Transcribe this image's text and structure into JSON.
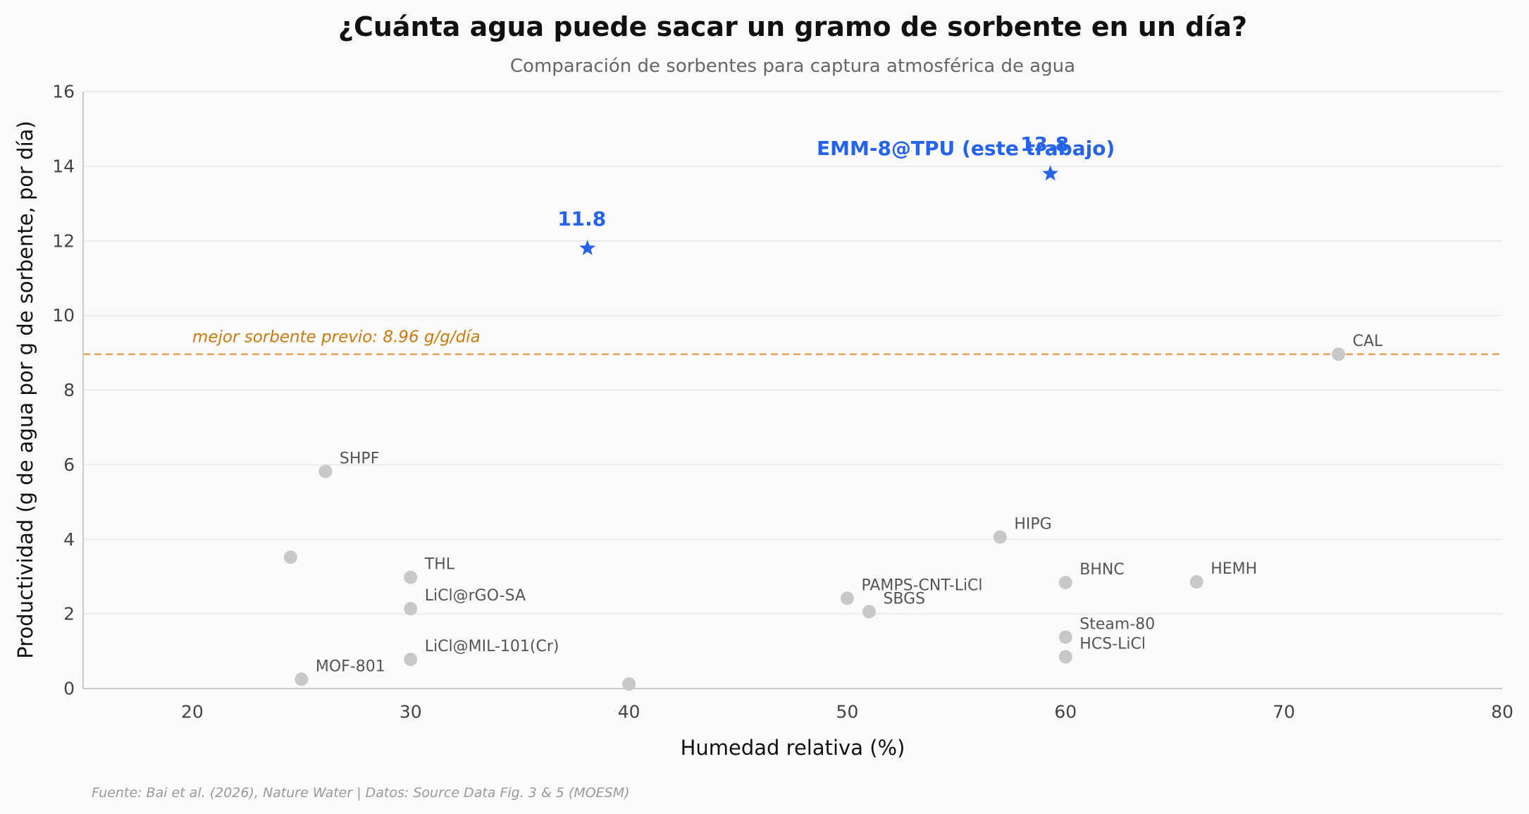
{
  "chart_data": {
    "type": "scatter",
    "title": "¿Cuánta agua puede sacar un gramo de sorbente en un día?",
    "subtitle": "Comparación de sorbentes para captura atmosférica de agua",
    "xlabel": "Humedad relativa (%)",
    "ylabel": "Productividad (g de agua por g de sorbente, por día)",
    "xlim": [
      15,
      80
    ],
    "ylim": [
      0,
      16
    ],
    "xticks": [
      20,
      30,
      40,
      50,
      60,
      70,
      80
    ],
    "yticks": [
      0,
      2,
      4,
      6,
      8,
      10,
      12,
      14,
      16
    ],
    "grid": "y",
    "reference_line": {
      "y": 8.96,
      "label": "mejor sorbente previo: 8.96 g/g/día"
    },
    "series": [
      {
        "points": [
          {
            "x": 26.1,
            "y": 5.82,
            "label": "SHPF"
          },
          {
            "x": 24.5,
            "y": 3.52,
            "label": ""
          },
          {
            "x": 30,
            "y": 2.98,
            "label": "THL"
          },
          {
            "x": 30,
            "y": 2.14,
            "label": "LiCl@rGO-SA"
          },
          {
            "x": 30,
            "y": 0.78,
            "label": "LiCl@MIL-101(Cr)"
          },
          {
            "x": 25,
            "y": 0.25,
            "label": "MOF-801"
          },
          {
            "x": 40,
            "y": 0.12,
            "label": ""
          },
          {
            "x": 50,
            "y": 2.42,
            "label": "PAMPS-CNT-LiCl"
          },
          {
            "x": 51,
            "y": 2.06,
            "label": "SBGS"
          },
          {
            "x": 57,
            "y": 4.06,
            "label": "HIPG"
          },
          {
            "x": 60,
            "y": 2.84,
            "label": "BHNC"
          },
          {
            "x": 60,
            "y": 1.38,
            "label": "Steam-80"
          },
          {
            "x": 60,
            "y": 0.85,
            "label": "HCS-LiCl"
          },
          {
            "x": 66,
            "y": 2.86,
            "label": "HEMH"
          },
          {
            "x": 72.5,
            "y": 8.96,
            "label": "CAL"
          }
        ]
      },
      {
        "name": "EMM-8@TPU (este trabajo)",
        "points": [
          {
            "x": 38.1,
            "y": 11.8,
            "label": "11.8"
          },
          {
            "x": 59.3,
            "y": 13.8,
            "label": "13.8"
          }
        ]
      }
    ],
    "source": "Fuente: Bai et al. (2026), Nature Water | Datos: Source Data Fig. 3 & 5 (MOESM)"
  },
  "colors": {
    "background": "#fafafa",
    "others": "#c8c8c8",
    "highlight": "#2563eb",
    "reference": "#e8a050",
    "reference_text": "#c87a10",
    "grid": "#e8e8e8",
    "axis": "#bbbbbb"
  },
  "icons": {
    "highlight_marker": "star-icon",
    "others_marker": "circle-icon"
  }
}
